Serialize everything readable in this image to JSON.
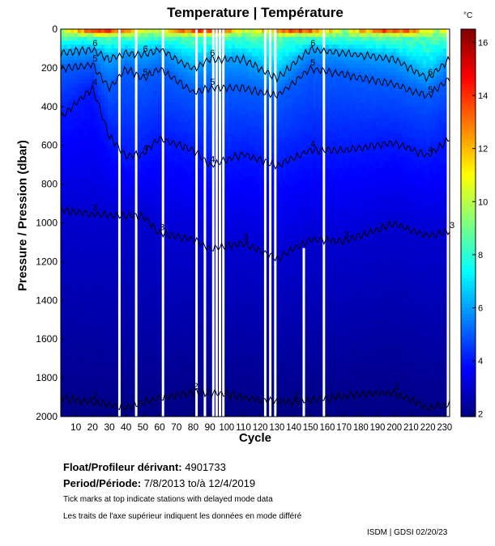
{
  "chart_data": {
    "type": "heatmap",
    "title": "Temperature | Température",
    "xlabel": "Cycle",
    "ylabel": "Pressure / Pression (dbar)",
    "xlim": [
      1,
      233
    ],
    "ylim": [
      2000,
      0
    ],
    "x_ticks": [
      10,
      20,
      30,
      40,
      50,
      60,
      70,
      80,
      90,
      100,
      110,
      120,
      130,
      140,
      150,
      160,
      170,
      180,
      190,
      200,
      210,
      220,
      230
    ],
    "y_ticks": [
      0,
      200,
      400,
      600,
      800,
      1000,
      1200,
      1400,
      1600,
      1800,
      2000
    ],
    "colorbar": {
      "unit": "°C",
      "range": [
        1.9,
        16.5
      ],
      "ticks": [
        2,
        4,
        6,
        8,
        10,
        12,
        14,
        16
      ],
      "colormap": "jet"
    },
    "missing_cycles": [
      36,
      46,
      62,
      82,
      87,
      92,
      94,
      96,
      98,
      123,
      126,
      129,
      158,
      232
    ],
    "partial_missing": [
      {
        "cycle": 146,
        "from_pressure": 1130
      }
    ],
    "contours": [
      {
        "label": "6",
        "cycles": [
          1,
          20,
          30,
          40,
          50,
          60,
          80,
          90,
          110,
          130,
          150,
          170,
          200,
          220,
          233
        ],
        "pressure": [
          120,
          100,
          150,
          120,
          130,
          100,
          200,
          150,
          150,
          250,
          100,
          120,
          150,
          250,
          150
        ]
      },
      {
        "label": "5",
        "cycles": [
          1,
          20,
          30,
          40,
          50,
          60,
          80,
          90,
          110,
          130,
          150,
          170,
          200,
          220,
          233
        ],
        "pressure": [
          200,
          180,
          300,
          200,
          250,
          200,
          320,
          300,
          300,
          340,
          200,
          230,
          280,
          340,
          250
        ]
      },
      {
        "label": "4",
        "cycles": [
          1,
          20,
          30,
          40,
          50,
          60,
          80,
          90,
          110,
          130,
          150,
          170,
          200,
          220,
          233
        ],
        "pressure": [
          450,
          300,
          550,
          650,
          640,
          560,
          620,
          700,
          640,
          700,
          620,
          620,
          580,
          650,
          560
        ]
      },
      {
        "label": "3",
        "cycles": [
          1,
          20,
          40,
          50,
          60,
          80,
          90,
          110,
          130,
          150,
          170,
          200,
          220,
          233
        ],
        "pressure": [
          930,
          950,
          960,
          960,
          1050,
          1080,
          1130,
          1100,
          1180,
          1080,
          1090,
          1000,
          1060,
          1040
        ]
      },
      {
        "label": "2",
        "cycles": [
          1,
          20,
          40,
          60,
          80,
          100,
          120,
          140,
          160,
          180,
          200,
          220,
          233
        ],
        "pressure": [
          1900,
          1920,
          1950,
          1900,
          1870,
          1880,
          1910,
          1920,
          1900,
          1880,
          1870,
          1950,
          1930
        ]
      }
    ]
  },
  "info": {
    "float_label": "Float/Profileur dérivant:",
    "float_id": "4901733",
    "period_label": "Period/Période:",
    "period_start": "7/8/2013",
    "period_to": "to/à",
    "period_end": "12/4/2019",
    "note_en": "Tick marks at top indicate stations with delayed mode data",
    "note_fr": "Les traits de l'axe supérieur indiquent les données en mode différé",
    "credit": "ISDM | GDSI  02/20/23"
  }
}
